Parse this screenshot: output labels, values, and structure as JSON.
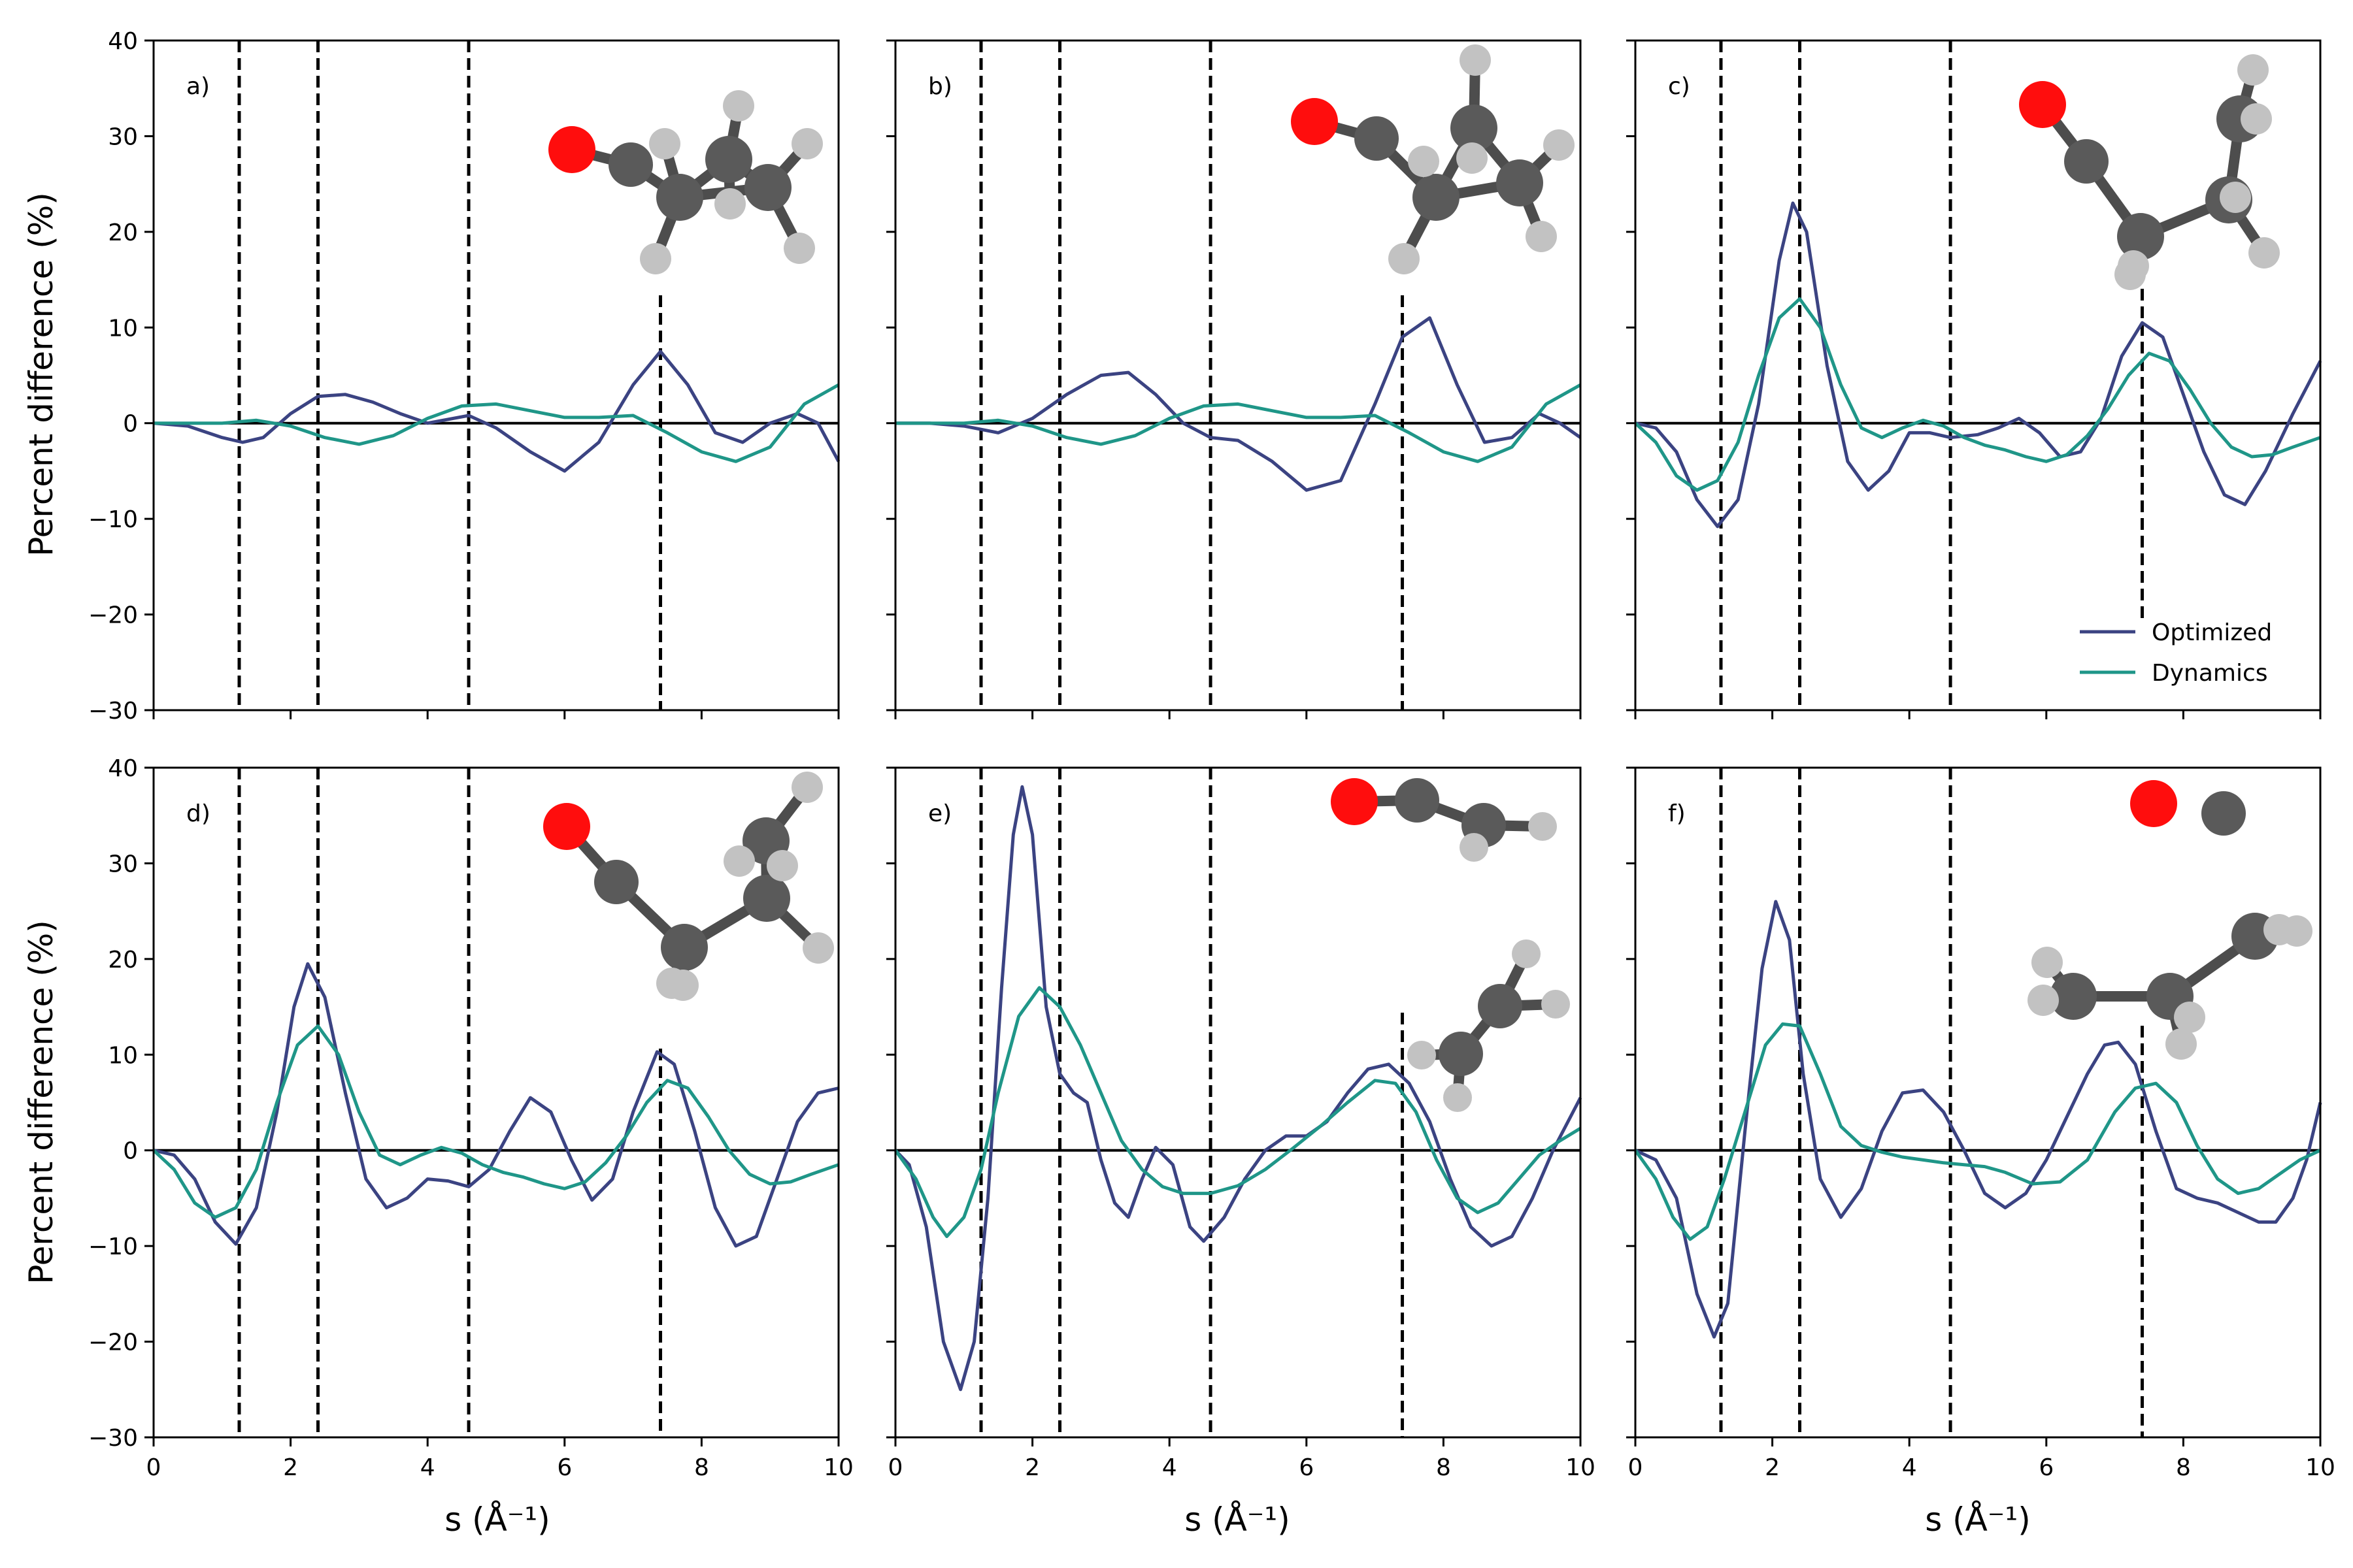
{
  "figure": {
    "ylabel": "Percent difference (%)",
    "xlabel": "s (Å⁻¹)",
    "dashed_lines_x": [
      1.25,
      2.4,
      4.6,
      7.4
    ],
    "legend": {
      "placement": "lower-right of panel c",
      "entries": [
        "Optimized",
        "Dynamics"
      ]
    },
    "colors": {
      "optimized": "#3b4382",
      "dynamics": "#1f9688",
      "oxygen": "#ff0d0d",
      "carbon": "#5a5a5a",
      "hydrogen": "#c2c2c2",
      "bond": "#4d4d4d"
    }
  },
  "chart_data": [
    {
      "type": "line",
      "panel_label": "a)",
      "xlim": [
        0,
        10
      ],
      "ylim": [
        -30,
        40
      ],
      "xticks": [
        0,
        2,
        4,
        6,
        8,
        10
      ],
      "yticks": [
        -30,
        -20,
        -10,
        0,
        10,
        20,
        30,
        40
      ],
      "series": [
        {
          "name": "Optimized",
          "x": [
            0,
            0.5,
            1,
            1.3,
            1.6,
            2,
            2.4,
            2.8,
            3.2,
            3.6,
            4,
            4.6,
            5,
            5.5,
            6,
            6.5,
            7,
            7.4,
            7.8,
            8.2,
            8.6,
            9,
            9.4,
            9.7,
            10
          ],
          "y": [
            0,
            -0.3,
            -1.5,
            -2,
            -1.5,
            1,
            2.8,
            3,
            2.2,
            1,
            0,
            0.8,
            -0.5,
            -3,
            -5,
            -2,
            4,
            7.5,
            4,
            -1,
            -2,
            0,
            1,
            0,
            -4
          ]
        },
        {
          "name": "Dynamics",
          "x": [
            0,
            0.5,
            1,
            1.5,
            2,
            2.5,
            3,
            3.5,
            4,
            4.5,
            5,
            5.5,
            6,
            6.5,
            7,
            7.5,
            8,
            8.5,
            9,
            9.5,
            10
          ],
          "y": [
            0,
            0,
            0,
            0.3,
            -0.3,
            -1.5,
            -2.2,
            -1.3,
            0.5,
            1.8,
            2,
            1.3,
            0.6,
            0.6,
            0.8,
            -1,
            -3,
            -4,
            -2.5,
            2,
            4
          ]
        }
      ]
    },
    {
      "type": "line",
      "panel_label": "b)",
      "xlim": [
        0,
        10
      ],
      "ylim": [
        -30,
        40
      ],
      "xticks": [
        0,
        2,
        4,
        6,
        8,
        10
      ],
      "yticks": [
        -30,
        -20,
        -10,
        0,
        10,
        20,
        30,
        40
      ],
      "series": [
        {
          "name": "Optimized",
          "x": [
            0,
            0.5,
            1,
            1.5,
            2,
            2.5,
            3,
            3.4,
            3.8,
            4.2,
            4.6,
            5,
            5.5,
            6,
            6.5,
            7,
            7.4,
            7.8,
            8.2,
            8.6,
            9,
            9.4,
            9.7,
            10
          ],
          "y": [
            0,
            0,
            -0.3,
            -1,
            0.5,
            3,
            5,
            5.3,
            3,
            0,
            -1.5,
            -1.8,
            -4,
            -7,
            -6,
            2,
            9,
            11,
            4,
            -2,
            -1.5,
            1,
            0,
            -1.5
          ]
        },
        {
          "name": "Dynamics",
          "x": [
            0,
            0.5,
            1,
            1.5,
            2,
            2.5,
            3,
            3.5,
            4,
            4.5,
            5,
            5.5,
            6,
            6.5,
            7,
            7.5,
            8,
            8.5,
            9,
            9.5,
            10
          ],
          "y": [
            0,
            0,
            0,
            0.3,
            -0.3,
            -1.5,
            -2.2,
            -1.3,
            0.5,
            1.8,
            2,
            1.3,
            0.6,
            0.6,
            0.8,
            -1,
            -3,
            -4,
            -2.5,
            2,
            4
          ]
        }
      ]
    },
    {
      "type": "line",
      "panel_label": "c)",
      "xlim": [
        0,
        10
      ],
      "ylim": [
        -30,
        40
      ],
      "xticks": [
        0,
        2,
        4,
        6,
        8,
        10
      ],
      "yticks": [
        -30,
        -20,
        -10,
        0,
        10,
        20,
        30,
        40
      ],
      "series": [
        {
          "name": "Optimized",
          "x": [
            0,
            0.3,
            0.6,
            0.9,
            1.2,
            1.5,
            1.8,
            2.1,
            2.3,
            2.5,
            2.8,
            3.1,
            3.4,
            3.7,
            4,
            4.3,
            4.6,
            5,
            5.3,
            5.6,
            5.9,
            6.2,
            6.5,
            6.8,
            7.1,
            7.4,
            7.7,
            8,
            8.3,
            8.6,
            8.9,
            9.2,
            9.6,
            10
          ],
          "y": [
            0,
            -0.5,
            -3,
            -8,
            -10.8,
            -8,
            2,
            17,
            23,
            20,
            6,
            -4,
            -7,
            -5,
            -1,
            -1,
            -1.5,
            -1.2,
            -0.5,
            0.5,
            -1,
            -3.5,
            -3,
            0.5,
            7,
            10.5,
            9,
            3,
            -3,
            -7.5,
            -8.5,
            -5,
            1,
            6.5
          ]
        },
        {
          "name": "Dynamics",
          "x": [
            0,
            0.3,
            0.6,
            0.9,
            1.2,
            1.5,
            1.8,
            2.1,
            2.4,
            2.7,
            3,
            3.3,
            3.6,
            3.9,
            4.2,
            4.5,
            4.8,
            5.1,
            5.4,
            5.7,
            6,
            6.3,
            6.6,
            6.9,
            7.2,
            7.5,
            7.8,
            8.1,
            8.4,
            8.7,
            9,
            9.3,
            9.6,
            10
          ],
          "y": [
            0,
            -2,
            -5.5,
            -7,
            -6,
            -2,
            5,
            11,
            13,
            10,
            4,
            -0.5,
            -1.5,
            -0.5,
            0.3,
            -0.3,
            -1.5,
            -2.3,
            -2.8,
            -3.5,
            -4,
            -3.3,
            -1.3,
            1.5,
            5,
            7.3,
            6.5,
            3.5,
            0,
            -2.5,
            -3.5,
            -3.3,
            -2.5,
            -1.5
          ]
        }
      ]
    },
    {
      "type": "line",
      "panel_label": "d)",
      "xlim": [
        0,
        10
      ],
      "ylim": [
        -30,
        40
      ],
      "xticks": [
        0,
        2,
        4,
        6,
        8,
        10
      ],
      "yticks": [
        -30,
        -20,
        -10,
        0,
        10,
        20,
        30,
        40
      ],
      "series": [
        {
          "name": "Optimized",
          "x": [
            0,
            0.3,
            0.6,
            0.9,
            1.2,
            1.5,
            1.8,
            2.05,
            2.25,
            2.5,
            2.8,
            3.1,
            3.4,
            3.7,
            4,
            4.3,
            4.6,
            4.9,
            5.2,
            5.5,
            5.8,
            6.1,
            6.4,
            6.7,
            7,
            7.35,
            7.6,
            7.9,
            8.2,
            8.5,
            8.8,
            9.1,
            9.4,
            9.7,
            10
          ],
          "y": [
            0,
            -0.5,
            -3,
            -7.5,
            -9.8,
            -6,
            4,
            15,
            19.5,
            16,
            6,
            -3,
            -6,
            -5,
            -3,
            -3.2,
            -3.8,
            -2,
            2,
            5.5,
            4,
            -1,
            -5.2,
            -3,
            4,
            10.3,
            9,
            2,
            -6,
            -10,
            -9,
            -3,
            3,
            6,
            6.5
          ]
        },
        {
          "name": "Dynamics",
          "x": [
            0,
            0.3,
            0.6,
            0.9,
            1.2,
            1.5,
            1.8,
            2.1,
            2.4,
            2.7,
            3,
            3.3,
            3.6,
            3.9,
            4.2,
            4.5,
            4.8,
            5.1,
            5.4,
            5.7,
            6,
            6.3,
            6.6,
            6.9,
            7.2,
            7.5,
            7.8,
            8.1,
            8.4,
            8.7,
            9,
            9.3,
            9.6,
            10
          ],
          "y": [
            0,
            -2,
            -5.5,
            -7,
            -6,
            -2,
            5,
            11,
            13,
            10,
            4,
            -0.5,
            -1.5,
            -0.5,
            0.3,
            -0.3,
            -1.5,
            -2.3,
            -2.8,
            -3.5,
            -4,
            -3.3,
            -1.3,
            1.5,
            5,
            7.3,
            6.5,
            3.5,
            0,
            -2.5,
            -3.5,
            -3.3,
            -2.5,
            -1.5
          ]
        }
      ]
    },
    {
      "type": "line",
      "panel_label": "e)",
      "xlim": [
        0,
        10
      ],
      "ylim": [
        -30,
        40
      ],
      "xticks": [
        0,
        2,
        4,
        6,
        8,
        10
      ],
      "yticks": [
        -30,
        -20,
        -10,
        0,
        10,
        20,
        30,
        40
      ],
      "series": [
        {
          "name": "Optimized",
          "x": [
            0,
            0.2,
            0.45,
            0.7,
            0.95,
            1.15,
            1.35,
            1.55,
            1.72,
            1.85,
            2,
            2.2,
            2.4,
            2.6,
            2.8,
            3,
            3.2,
            3.4,
            3.6,
            3.8,
            4.05,
            4.3,
            4.5,
            4.8,
            5.1,
            5.4,
            5.7,
            6,
            6.3,
            6.6,
            6.9,
            7.2,
            7.5,
            7.8,
            8.1,
            8.4,
            8.7,
            9,
            9.3,
            9.6,
            10
          ],
          "y": [
            0,
            -1.5,
            -8,
            -20,
            -25,
            -20,
            -5,
            17,
            33,
            38,
            33,
            15,
            8,
            6,
            5,
            -1,
            -5.5,
            -7,
            -3,
            0.3,
            -1.5,
            -8,
            -9.5,
            -7,
            -3,
            0,
            1.5,
            1.5,
            3,
            6,
            8.5,
            9,
            7,
            3,
            -3,
            -8,
            -10,
            -9,
            -5,
            0,
            5.5
          ]
        },
        {
          "name": "Dynamics",
          "x": [
            0,
            0.3,
            0.55,
            0.75,
            1,
            1.25,
            1.5,
            1.8,
            2.1,
            2.4,
            2.7,
            3,
            3.3,
            3.6,
            3.9,
            4.2,
            4.6,
            5,
            5.4,
            5.8,
            6.2,
            6.6,
            7,
            7.3,
            7.6,
            7.9,
            8.2,
            8.5,
            8.8,
            9.1,
            9.4,
            9.7,
            10
          ],
          "y": [
            0,
            -3,
            -7,
            -9,
            -7,
            -2,
            6,
            14,
            17,
            15,
            11,
            6,
            1,
            -2,
            -3.8,
            -4.5,
            -4.5,
            -3.7,
            -2,
            0.2,
            2.5,
            5,
            7.3,
            7,
            4,
            -1,
            -5,
            -6.5,
            -5.5,
            -3,
            -0.5,
            1,
            2.3
          ]
        }
      ]
    },
    {
      "type": "line",
      "panel_label": "f)",
      "xlim": [
        0,
        10
      ],
      "ylim": [
        -30,
        40
      ],
      "xticks": [
        0,
        2,
        4,
        6,
        8,
        10
      ],
      "yticks": [
        -30,
        -20,
        -10,
        0,
        10,
        20,
        30,
        40
      ],
      "series": [
        {
          "name": "Optimized",
          "x": [
            0,
            0.3,
            0.6,
            0.9,
            1.15,
            1.35,
            1.6,
            1.85,
            2.05,
            2.25,
            2.45,
            2.7,
            3,
            3.3,
            3.6,
            3.9,
            4.2,
            4.5,
            4.8,
            5.1,
            5.4,
            5.7,
            6,
            6.3,
            6.6,
            6.85,
            7.05,
            7.3,
            7.6,
            7.9,
            8.2,
            8.5,
            8.8,
            9.1,
            9.35,
            9.6,
            9.8,
            10
          ],
          "y": [
            0,
            -1,
            -5,
            -15,
            -19.5,
            -16,
            2,
            19,
            26,
            22,
            8,
            -3,
            -7,
            -4,
            2,
            6,
            6.3,
            4,
            0,
            -4.5,
            -6,
            -4.5,
            -1,
            3.5,
            8,
            11,
            11.3,
            9,
            2,
            -4,
            -5,
            -5.5,
            -6.5,
            -7.5,
            -7.5,
            -5,
            -1,
            5
          ]
        },
        {
          "name": "Dynamics",
          "x": [
            0,
            0.3,
            0.55,
            0.8,
            1.05,
            1.3,
            1.6,
            1.9,
            2.15,
            2.4,
            2.7,
            3,
            3.3,
            3.6,
            3.9,
            4.2,
            4.5,
            4.8,
            5.1,
            5.4,
            5.8,
            6.2,
            6.6,
            7,
            7.3,
            7.6,
            7.9,
            8.2,
            8.5,
            8.8,
            9.1,
            9.4,
            9.7,
            10
          ],
          "y": [
            0,
            -3,
            -7,
            -9.3,
            -8,
            -3,
            4,
            11,
            13.2,
            13,
            8,
            2.5,
            0.5,
            -0.2,
            -0.7,
            -1,
            -1.3,
            -1.5,
            -1.7,
            -2.3,
            -3.5,
            -3.3,
            -1,
            4,
            6.5,
            7,
            5,
            0.5,
            -3,
            -4.5,
            -4,
            -2.5,
            -1,
            0
          ]
        }
      ]
    }
  ]
}
